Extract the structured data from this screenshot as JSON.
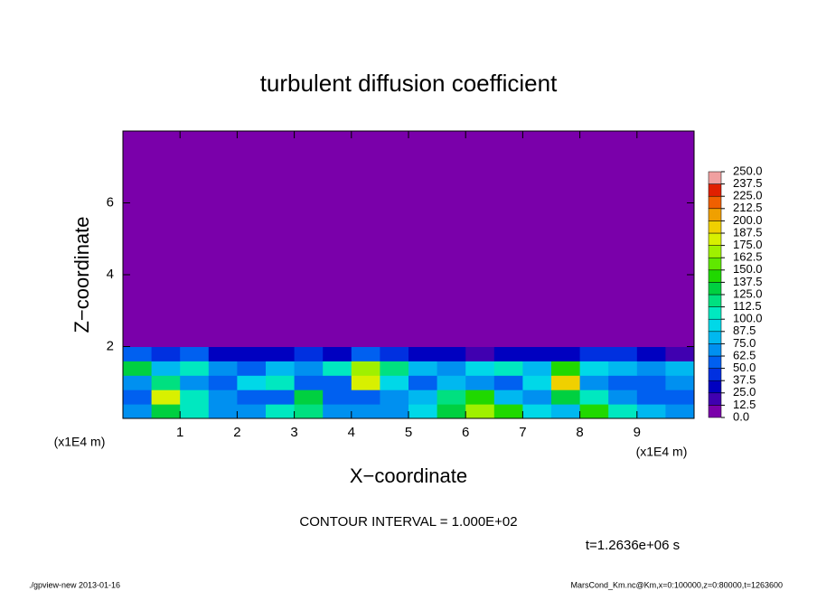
{
  "chart_data": {
    "type": "heatmap",
    "title": "turbulent diffusion coefficient",
    "xlabel": "X−coordinate",
    "ylabel": "Z−coordinate",
    "x_unit": "(x1E4 m)",
    "contour_note": "CONTOUR INTERVAL = 1.000E+02",
    "time_note": "t=1.2636e+06 s",
    "footer_left": "./gpview-new  2013-01-16",
    "footer_right": "MarsCond_Km.nc@Km,x=0:100000,z=0:80000,t=1263600",
    "xlim": [
      0,
      10
    ],
    "ylim": [
      0,
      8
    ],
    "xticks": [
      1,
      2,
      3,
      4,
      5,
      6,
      7,
      8,
      9
    ],
    "yticks": [
      2,
      4,
      6
    ],
    "xbins": [
      0,
      0.5,
      1,
      1.5,
      2,
      2.5,
      3,
      3.5,
      4,
      4.5,
      5,
      5.5,
      6,
      6.5,
      7,
      7.5,
      8,
      8.5,
      9,
      9.5,
      10
    ],
    "ybins": [
      0,
      0.4,
      0.8,
      1.2,
      1.6,
      2,
      8
    ],
    "values": [
      [
        70,
        130,
        110,
        70,
        65,
        100,
        120,
        70,
        65,
        70,
        90,
        130,
        170,
        140,
        90,
        80,
        140,
        110,
        75,
        70
      ],
      [
        60,
        180,
        100,
        65,
        55,
        60,
        130,
        60,
        60,
        70,
        80,
        120,
        140,
        80,
        70,
        130,
        110,
        65,
        60,
        60
      ],
      [
        70,
        120,
        70,
        60,
        90,
        110,
        60,
        55,
        180,
        90,
        60,
        80,
        70,
        60,
        90,
        190,
        70,
        60,
        60,
        70
      ],
      [
        130,
        80,
        100,
        70,
        60,
        80,
        65,
        100,
        170,
        120,
        80,
        70,
        90,
        100,
        80,
        140,
        90,
        75,
        70,
        80
      ],
      [
        60,
        40,
        50,
        30,
        25,
        30,
        40,
        30,
        50,
        45,
        30,
        25,
        20,
        25,
        30,
        35,
        40,
        45,
        30,
        20
      ],
      [
        0,
        0,
        0,
        0,
        0,
        0,
        0,
        0,
        0,
        0,
        0,
        0,
        0,
        0,
        0,
        0,
        0,
        0,
        0,
        0
      ]
    ],
    "colorbar_ticks": [
      {
        "value": 0,
        "label": "0.0"
      },
      {
        "value": 12.5,
        "label": "12.5"
      },
      {
        "value": 25,
        "label": "25.0"
      },
      {
        "value": 37.5,
        "label": "37.5"
      },
      {
        "value": 50,
        "label": "50.0"
      },
      {
        "value": 62.5,
        "label": "62.5"
      },
      {
        "value": 75,
        "label": "75.0"
      },
      {
        "value": 87.5,
        "label": "87.5"
      },
      {
        "value": 100,
        "label": "100.0"
      },
      {
        "value": 112.5,
        "label": "112.5"
      },
      {
        "value": 125,
        "label": "125.0"
      },
      {
        "value": 137.5,
        "label": "137.5"
      },
      {
        "value": 150,
        "label": "150.0"
      },
      {
        "value": 162.5,
        "label": "162.5"
      },
      {
        "value": 175,
        "label": "175.0"
      },
      {
        "value": 187.5,
        "label": "187.5"
      },
      {
        "value": 200,
        "label": "200.0"
      },
      {
        "value": 212.5,
        "label": "212.5"
      },
      {
        "value": 225,
        "label": "225.0"
      },
      {
        "value": 237.5,
        "label": "237.5"
      },
      {
        "value": 250,
        "label": "250.0"
      }
    ],
    "colors": [
      "#7a00aa",
      "#4000b0",
      "#0000c0",
      "#0030e0",
      "#0060f0",
      "#0090f0",
      "#00b8f0",
      "#00d8e8",
      "#00e8c0",
      "#00e080",
      "#00d040",
      "#20d800",
      "#60e800",
      "#a0f000",
      "#d8f000",
      "#f0d000",
      "#f0a000",
      "#f06000",
      "#e02000",
      "#f0a0a0"
    ]
  }
}
